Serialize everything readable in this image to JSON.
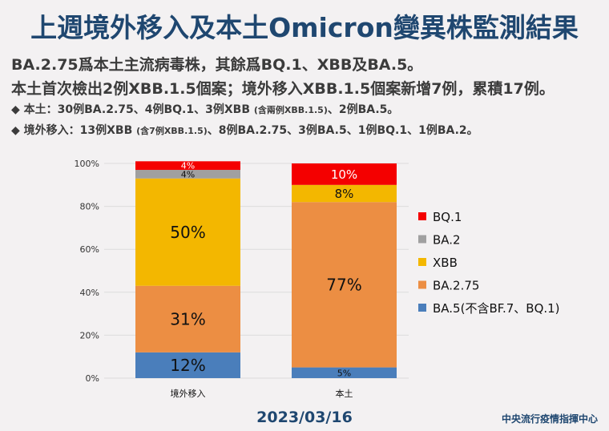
{
  "title": "上週境外移入及本土Omicron變異株監測結果",
  "summary": {
    "line1": "BA.2.75爲本土主流病毒株，其餘爲BQ.1、XBB及BA.5。",
    "line2": "本土首次檢出2例XBB.1.5個案；境外移入XBB.1.5個案新增7例，累積17例。",
    "bullet1_main": "◆  本土：30例BA.2.75、4例BQ.1、3例XBB ",
    "bullet1_small": "(含兩例XBB.1.5)",
    "bullet1_end": "、2例BA.5。",
    "bullet2_main": "◆  境外移入：13例XBB ",
    "bullet2_small": "(含7例XBB.1.5)",
    "bullet2_end": "、8例BA.2.75、3例BA.5、1例BQ.1、1例BA.2。"
  },
  "chart_data": {
    "type": "bar",
    "stacked": true,
    "categories": [
      "境外移入",
      "本土"
    ],
    "ylim": [
      0,
      100
    ],
    "yticks": [
      "0%",
      "20%",
      "40%",
      "60%",
      "80%",
      "100%"
    ],
    "grid": true,
    "legend_placement": "right",
    "series": [
      {
        "name": "BA.5(不含BF.7、BQ.1)",
        "color": "#4a7ebb",
        "values": [
          12,
          5
        ],
        "labels": [
          "12%",
          "5%"
        ]
      },
      {
        "name": "BA.2.75",
        "color": "#ec8e43",
        "values": [
          31,
          77
        ],
        "labels": [
          "31%",
          "77%"
        ]
      },
      {
        "name": "XBB",
        "color": "#f3b700",
        "values": [
          50,
          8
        ],
        "labels": [
          "50%",
          "8%"
        ]
      },
      {
        "name": "BA.2",
        "color": "#a0a0a0",
        "values": [
          4,
          0
        ],
        "labels": [
          "4%",
          ""
        ]
      },
      {
        "name": "BQ.1",
        "color": "#f40000",
        "values": [
          4,
          10
        ],
        "labels": [
          "4%",
          "10%"
        ]
      }
    ]
  },
  "date": "2023/03/16",
  "org": "中央流行疫情指揮中心"
}
